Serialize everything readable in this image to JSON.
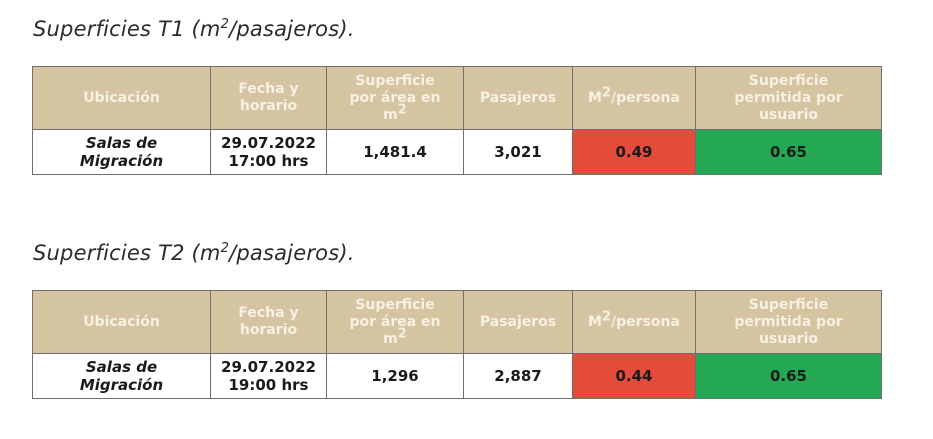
{
  "tables": [
    {
      "title": "Superficies T1 (m",
      "title_sup": "2",
      "title_end": "/pasajeros).",
      "headers": {
        "ubicacion": "Ubicación",
        "fecha_1": "Fecha y",
        "fecha_2": "horario",
        "superficie_1": "Superficie",
        "superficie_2": "por área en",
        "superficie_3": "m",
        "superficie_3_sup": "2",
        "pasajeros": "Pasajeros",
        "m2_pre": "M",
        "m2_sup": "2",
        "m2_post": "/persona",
        "permitida_1": "Superficie",
        "permitida_2": "permitida por",
        "permitida_3": "usuario"
      },
      "row": {
        "ubicacion_1": "Salas de",
        "ubicacion_2": "Migración",
        "fecha": "29.07.2022",
        "hora": "17:00 hrs",
        "superficie": "1,481.4",
        "pasajeros": "3,021",
        "m2_persona": "0.49",
        "permitida": "0.65"
      }
    },
    {
      "title": "Superficies T2 (m",
      "title_sup": "2",
      "title_end": "/pasajeros).",
      "headers": {
        "ubicacion": "Ubicación",
        "fecha_1": "Fecha y",
        "fecha_2": "horario",
        "superficie_1": "Superficie",
        "superficie_2": "por área en",
        "superficie_3": "m",
        "superficie_3_sup": "2",
        "pasajeros": "Pasajeros",
        "m2_pre": "M",
        "m2_sup": "2",
        "m2_post": "/persona",
        "permitida_1": "Superficie",
        "permitida_2": "permitida por",
        "permitida_3": "usuario"
      },
      "row": {
        "ubicacion_1": "Salas de",
        "ubicacion_2": "Migración",
        "fecha": "29.07.2022",
        "hora": "19:00 hrs",
        "superficie": "1,296",
        "pasajeros": "2,887",
        "m2_persona": "0.44",
        "permitida": "0.65"
      }
    }
  ],
  "colors": {
    "header_bg": "#d5c4a1",
    "header_text": "#f7f1e3",
    "below_limit": "#e34b3b",
    "allowed": "#25a854"
  }
}
